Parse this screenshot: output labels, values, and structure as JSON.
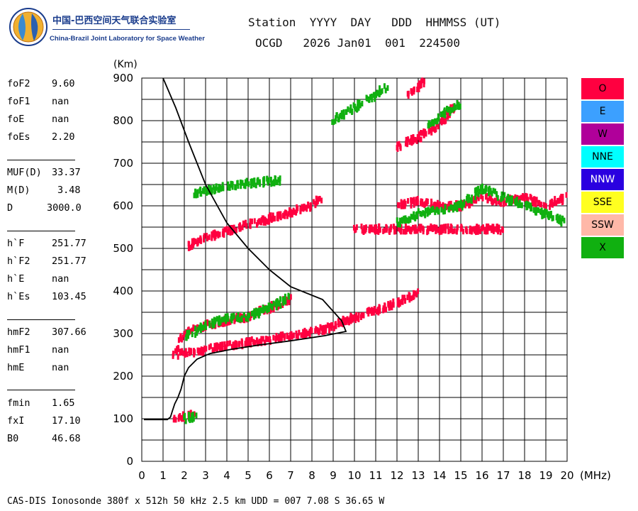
{
  "logo": {
    "name_cn": "中国-巴西空间天气联合实验室",
    "name_en": "China-Brazil Joint Laboratory for Space Weather"
  },
  "header": {
    "line1": "Station  YYYY  DAY   DDD  HHMMSS (UT)",
    "line2": "OCGD   2026 Jan01  001  224500"
  },
  "params": [
    [
      {
        "k": "foF2",
        "v": "9.60"
      },
      {
        "k": "foF1",
        "v": "nan"
      },
      {
        "k": "foE",
        "v": "nan"
      },
      {
        "k": "foEs",
        "v": "2.20"
      }
    ],
    [
      {
        "k": "MUF(D)",
        "v": "33.37"
      },
      {
        "k": "M(D)",
        "v": "3.48"
      },
      {
        "k": "D",
        "v": "3000.0"
      }
    ],
    [
      {
        "k": "h`F",
        "v": "251.77"
      },
      {
        "k": "h`F2",
        "v": "251.77"
      },
      {
        "k": "h`E",
        "v": "nan"
      },
      {
        "k": "h`Es",
        "v": "103.45"
      }
    ],
    [
      {
        "k": "hmF2",
        "v": "307.66"
      },
      {
        "k": "hmF1",
        "v": "nan"
      },
      {
        "k": "hmE",
        "v": "nan"
      }
    ],
    [
      {
        "k": "fmin",
        "v": "1.65"
      },
      {
        "k": "fxI",
        "v": "17.10"
      },
      {
        "k": "B0",
        "v": "46.68"
      }
    ]
  ],
  "legend": [
    {
      "label": "O",
      "color": "#ff0040"
    },
    {
      "label": "E",
      "color": "#3ca0ff"
    },
    {
      "label": "W",
      "color": "#b0009a"
    },
    {
      "label": "NNE",
      "color": "#00ffff"
    },
    {
      "label": "NNW",
      "color": "#2a00e0"
    },
    {
      "label": "SSE",
      "color": "#ffff20"
    },
    {
      "label": "SSW",
      "color": "#ffb8a8"
    },
    {
      "label": "X",
      "color": "#10b010"
    }
  ],
  "footer": "CAS-DIS Ionosonde 380f x 512h 50 kHz 2.5 km UDD = 007 7.08 S 36.65 W",
  "chart_data": {
    "type": "scatter",
    "title": "",
    "xlabel": "(MHz)",
    "ylabel": "(Km)",
    "xlim": [
      0,
      20
    ],
    "ylim": [
      0,
      900
    ],
    "xticks": [
      0,
      1,
      2,
      3,
      4,
      5,
      6,
      7,
      8,
      9,
      10,
      11,
      12,
      13,
      14,
      15,
      16,
      17,
      18,
      19,
      20
    ],
    "yticks": [
      0,
      100,
      200,
      300,
      400,
      500,
      600,
      700,
      800,
      900
    ],
    "grid": true,
    "series": [
      {
        "name": "O",
        "color": "#ff0040",
        "traces": [
          {
            "x": [
              1.5,
              3,
              5,
              7,
              9,
              9.6,
              11,
              12,
              13
            ],
            "y": [
              250,
              262,
              278,
              295,
              315,
              330,
              355,
              372,
              395
            ]
          },
          {
            "x": [
              1.5,
              2,
              3,
              4,
              5,
              6,
              7
            ],
            "y": [
              250,
              300,
              320,
              330,
              340,
              360,
              380
            ]
          },
          {
            "x": [
              2.1,
              3,
              4,
              5,
              6,
              7,
              8,
              8.4
            ],
            "y": [
              505,
              525,
              540,
              555,
              570,
              585,
              600,
              618
            ]
          },
          {
            "x": [
              10,
              11,
              12,
              13,
              14,
              15,
              16,
              17
            ],
            "y": [
              545,
              545,
              545,
              545,
              545,
              545,
              545,
              545
            ]
          },
          {
            "x": [
              12,
              13,
              14,
              15,
              16,
              17,
              18,
              19,
              20
            ],
            "y": [
              600,
              610,
              600,
              600,
              620,
              610,
              620,
              600,
              620
            ]
          },
          {
            "x": [
              12,
              13,
              14,
              15
            ],
            "y": [
              740,
              760,
              790,
              850
            ]
          },
          {
            "x": [
              12.5,
              13,
              13.5
            ],
            "y": [
              860,
              880,
              900
            ]
          },
          {
            "x": [
              1.5,
              2,
              2.5
            ],
            "y": [
              100,
              105,
              110
            ]
          }
        ]
      },
      {
        "name": "X",
        "color": "#10b010",
        "traces": [
          {
            "x": [
              2,
              3,
              4,
              5,
              6,
              7
            ],
            "y": [
              290,
              320,
              335,
              340,
              360,
              385
            ]
          },
          {
            "x": [
              2.4,
              3.5,
              4.5,
              5.5,
              6.5
            ],
            "y": [
              630,
              640,
              650,
              655,
              660
            ]
          },
          {
            "x": [
              9,
              10,
              11,
              11.5
            ],
            "y": [
              800,
              830,
              860,
              880
            ]
          },
          {
            "x": [
              13.5,
              14,
              15
            ],
            "y": [
              790,
              810,
              840
            ]
          },
          {
            "x": [
              12,
              13,
              14,
              15,
              16,
              17,
              18,
              19,
              20
            ],
            "y": [
              560,
              580,
              590,
              600,
              640,
              620,
              600,
              580,
              560
            ]
          },
          {
            "x": [
              2,
              2.5
            ],
            "y": [
              100,
              105
            ]
          }
        ]
      }
    ],
    "trace_curve": {
      "x": [
        0.1,
        1.2,
        1.35,
        1.45,
        1.55,
        1.7,
        1.85,
        2.0,
        2.2,
        2.6,
        3.2,
        4.2,
        5.5,
        7,
        8.6,
        9.6,
        9.4,
        8.5,
        7,
        6,
        5,
        4,
        3,
        2.2,
        1.6,
        1.0
      ],
      "y": [
        98,
        98,
        104,
        120,
        135,
        150,
        170,
        200,
        220,
        240,
        253,
        263,
        273,
        283,
        295,
        305,
        330,
        380,
        410,
        450,
        500,
        560,
        650,
        750,
        830,
        900
      ]
    }
  }
}
